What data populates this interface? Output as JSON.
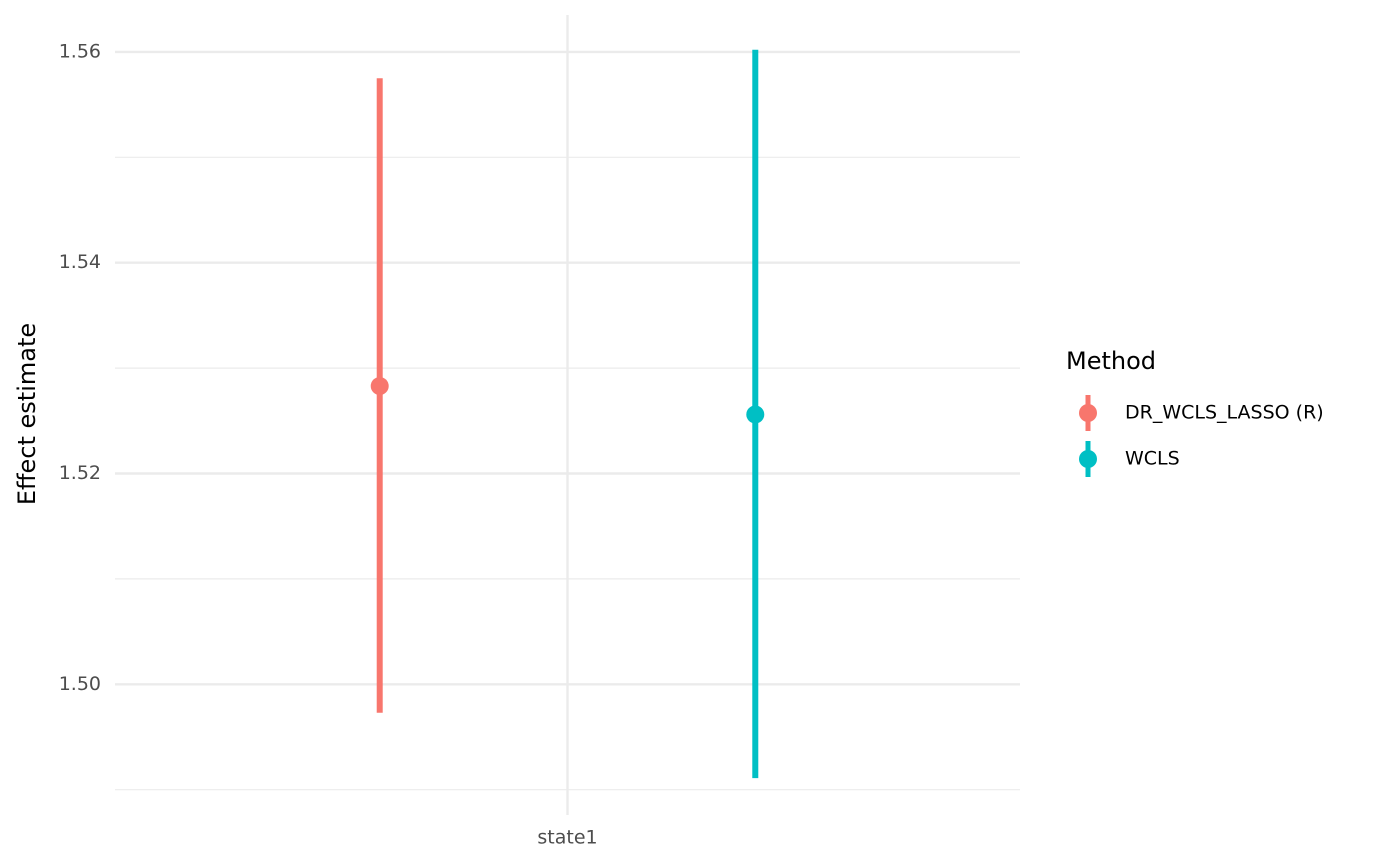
{
  "chart_data": {
    "type": "pointrange",
    "y_label": "Effect estimate",
    "categories": [
      "state1"
    ],
    "legend_title": "Method",
    "series": [
      {
        "name": "DR_WCLS_LASSO (R)",
        "color": "#f8766d",
        "values": [
          1.5283
        ],
        "lower": [
          1.4973
        ],
        "upper": [
          1.5575
        ]
      },
      {
        "name": "WCLS",
        "color": "#00bfc4",
        "values": [
          1.5256
        ],
        "lower": [
          1.4911
        ],
        "upper": [
          1.5602
        ]
      }
    ],
    "ylim": [
      1.4876,
      1.5635
    ],
    "yticks": [
      {
        "value": 1.5,
        "label": "1.50"
      },
      {
        "value": 1.52,
        "label": "1.52"
      },
      {
        "value": 1.54,
        "label": "1.54"
      },
      {
        "value": 1.56,
        "label": "1.56"
      }
    ],
    "grid": true,
    "legend_position": "right"
  }
}
